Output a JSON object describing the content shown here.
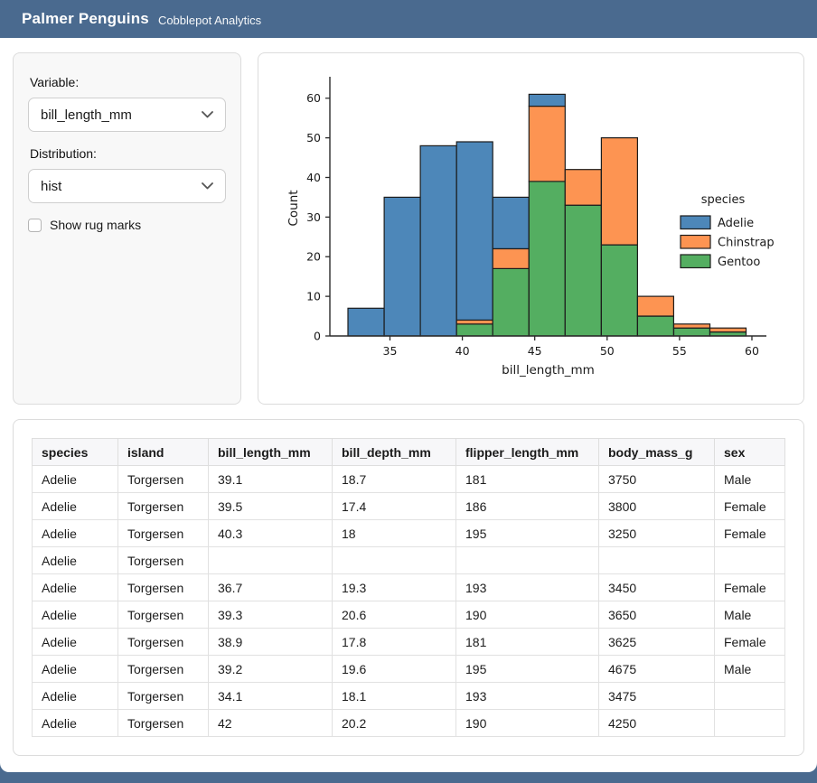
{
  "header": {
    "title": "Palmer Penguins",
    "subtitle": "Cobblepot Analytics"
  },
  "sidebar": {
    "variable_label": "Variable:",
    "variable_value": "bill_length_mm",
    "distribution_label": "Distribution:",
    "distribution_value": "hist",
    "rug_checkbox_label": "Show rug marks",
    "rug_checked": false
  },
  "chart_data": {
    "type": "bar",
    "subtype": "stacked-histogram",
    "title": "",
    "xlabel": "bill_length_mm",
    "ylabel": "Count",
    "bin_edges": [
      32.1,
      34.6,
      37.1,
      39.6,
      42.1,
      44.6,
      47.1,
      49.6,
      52.1,
      54.6,
      57.1,
      59.6
    ],
    "series": [
      {
        "name": "Adelie",
        "color": "#4d87b9",
        "values": [
          7,
          35,
          48,
          45,
          13,
          3,
          0,
          0,
          0,
          0,
          0
        ]
      },
      {
        "name": "Chinstrap",
        "color": "#fd9452",
        "values": [
          0,
          0,
          0,
          1,
          5,
          19,
          9,
          27,
          5,
          1,
          1
        ]
      },
      {
        "name": "Gentoo",
        "color": "#54ae61",
        "values": [
          0,
          0,
          0,
          3,
          17,
          39,
          33,
          23,
          5,
          2,
          1
        ]
      }
    ],
    "stack_order_bottom_to_top": [
      "Gentoo",
      "Chinstrap",
      "Adelie"
    ],
    "legend": {
      "title": "species",
      "position": "center-right"
    },
    "x_ticks": [
      35,
      40,
      45,
      50,
      55,
      60
    ],
    "y_ticks": [
      0,
      10,
      20,
      30,
      40,
      50,
      60
    ],
    "xlim": [
      30.85,
      61.0
    ],
    "ylim": [
      0,
      64.5
    ],
    "grid": false,
    "edge_color": "#1c1c1c"
  },
  "table": {
    "columns": [
      "species",
      "island",
      "bill_length_mm",
      "bill_depth_mm",
      "flipper_length_mm",
      "body_mass_g",
      "sex"
    ],
    "col_widths": [
      "95px",
      "100px",
      "137px",
      "137px",
      "158px",
      "128px",
      "auto"
    ],
    "rows": [
      [
        "Adelie",
        "Torgersen",
        "39.1",
        "18.7",
        "181",
        "3750",
        "Male"
      ],
      [
        "Adelie",
        "Torgersen",
        "39.5",
        "17.4",
        "186",
        "3800",
        "Female"
      ],
      [
        "Adelie",
        "Torgersen",
        "40.3",
        "18",
        "195",
        "3250",
        "Female"
      ],
      [
        "Adelie",
        "Torgersen",
        "",
        "",
        "",
        "",
        ""
      ],
      [
        "Adelie",
        "Torgersen",
        "36.7",
        "19.3",
        "193",
        "3450",
        "Female"
      ],
      [
        "Adelie",
        "Torgersen",
        "39.3",
        "20.6",
        "190",
        "3650",
        "Male"
      ],
      [
        "Adelie",
        "Torgersen",
        "38.9",
        "17.8",
        "181",
        "3625",
        "Female"
      ],
      [
        "Adelie",
        "Torgersen",
        "39.2",
        "19.6",
        "195",
        "4675",
        "Male"
      ],
      [
        "Adelie",
        "Torgersen",
        "34.1",
        "18.1",
        "193",
        "3475",
        ""
      ],
      [
        "Adelie",
        "Torgersen",
        "42",
        "20.2",
        "190",
        "4250",
        ""
      ]
    ]
  },
  "colors": {
    "header_bg": "#4a6a8f",
    "card_border": "#dcdcdc",
    "sidebar_bg": "#f8f8f8"
  }
}
